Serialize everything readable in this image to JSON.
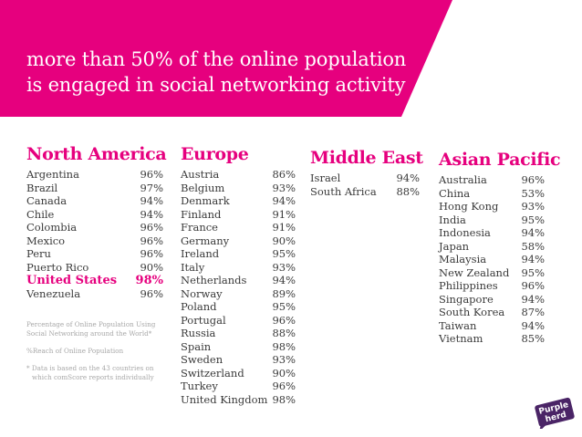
{
  "headline": {
    "line1": "more than 50% of the online population",
    "line2": "is engaged in social networking activity"
  },
  "colors": {
    "brand_pink": "#e6007e",
    "text": "#3a3a3a",
    "note_gray": "#a8a8a8",
    "logo_purple": "#4a2466"
  },
  "regions": {
    "north_america": {
      "title": "North America",
      "rows": [
        {
          "country": "Argentina",
          "value": "96%"
        },
        {
          "country": "Brazil",
          "value": "97%"
        },
        {
          "country": "Canada",
          "value": "94%"
        },
        {
          "country": "Chile",
          "value": "94%"
        },
        {
          "country": "Colombia",
          "value": "96%"
        },
        {
          "country": "Mexico",
          "value": "96%"
        },
        {
          "country": "Peru",
          "value": "96%"
        },
        {
          "country": "Puerto Rico",
          "value": "90%"
        },
        {
          "country": "United States",
          "value": "98%"
        },
        {
          "country": "Venezuela",
          "value": "96%"
        }
      ]
    },
    "europe": {
      "title": "Europe",
      "rows": [
        {
          "country": "Austria",
          "value": "86%"
        },
        {
          "country": "Belgium",
          "value": "93%"
        },
        {
          "country": "Denmark",
          "value": "94%"
        },
        {
          "country": "Finland",
          "value": "91%"
        },
        {
          "country": "France",
          "value": "91%"
        },
        {
          "country": "Germany",
          "value": "90%"
        },
        {
          "country": "Ireland",
          "value": "95%"
        },
        {
          "country": "Italy",
          "value": "93%"
        },
        {
          "country": "Netherlands",
          "value": "94%"
        },
        {
          "country": "Norway",
          "value": "89%"
        },
        {
          "country": "Poland",
          "value": "95%"
        },
        {
          "country": "Portugal",
          "value": "96%"
        },
        {
          "country": "Russia",
          "value": "88%"
        },
        {
          "country": "Spain",
          "value": "98%"
        },
        {
          "country": "Sweden",
          "value": "93%"
        },
        {
          "country": "Switzerland",
          "value": "90%"
        },
        {
          "country": "Turkey",
          "value": "96%"
        },
        {
          "country": "United Kingdom",
          "value": "98%"
        }
      ]
    },
    "middle_east": {
      "title": "Middle East",
      "rows": [
        {
          "country": "Israel",
          "value": "94%"
        },
        {
          "country": "South Africa",
          "value": "88%"
        }
      ]
    },
    "asian_pacific": {
      "title": "Asian Pacific",
      "rows": [
        {
          "country": "Australia",
          "value": "96%"
        },
        {
          "country": "China",
          "value": "53%"
        },
        {
          "country": "Hong Kong",
          "value": "93%"
        },
        {
          "country": "India",
          "value": "95%"
        },
        {
          "country": "Indonesia",
          "value": "94%"
        },
        {
          "country": "Japan",
          "value": "58%"
        },
        {
          "country": "Malaysia",
          "value": "94%"
        },
        {
          "country": "New Zealand",
          "value": "95%"
        },
        {
          "country": "Philippines",
          "value": "96%"
        },
        {
          "country": "Singapore",
          "value": "94%"
        },
        {
          "country": "South Korea",
          "value": "87%"
        },
        {
          "country": "Taiwan",
          "value": "94%"
        },
        {
          "country": "Vietnam",
          "value": "85%"
        }
      ]
    }
  },
  "notes": {
    "note1": "Percentage of Online Population Using Social Networking around the World*",
    "note2": "%Reach of Online Population",
    "note3": "* Data is based on the 43 countries on which comScore reports individually"
  },
  "logo": {
    "line1": "Purple",
    "line2": "herd"
  }
}
